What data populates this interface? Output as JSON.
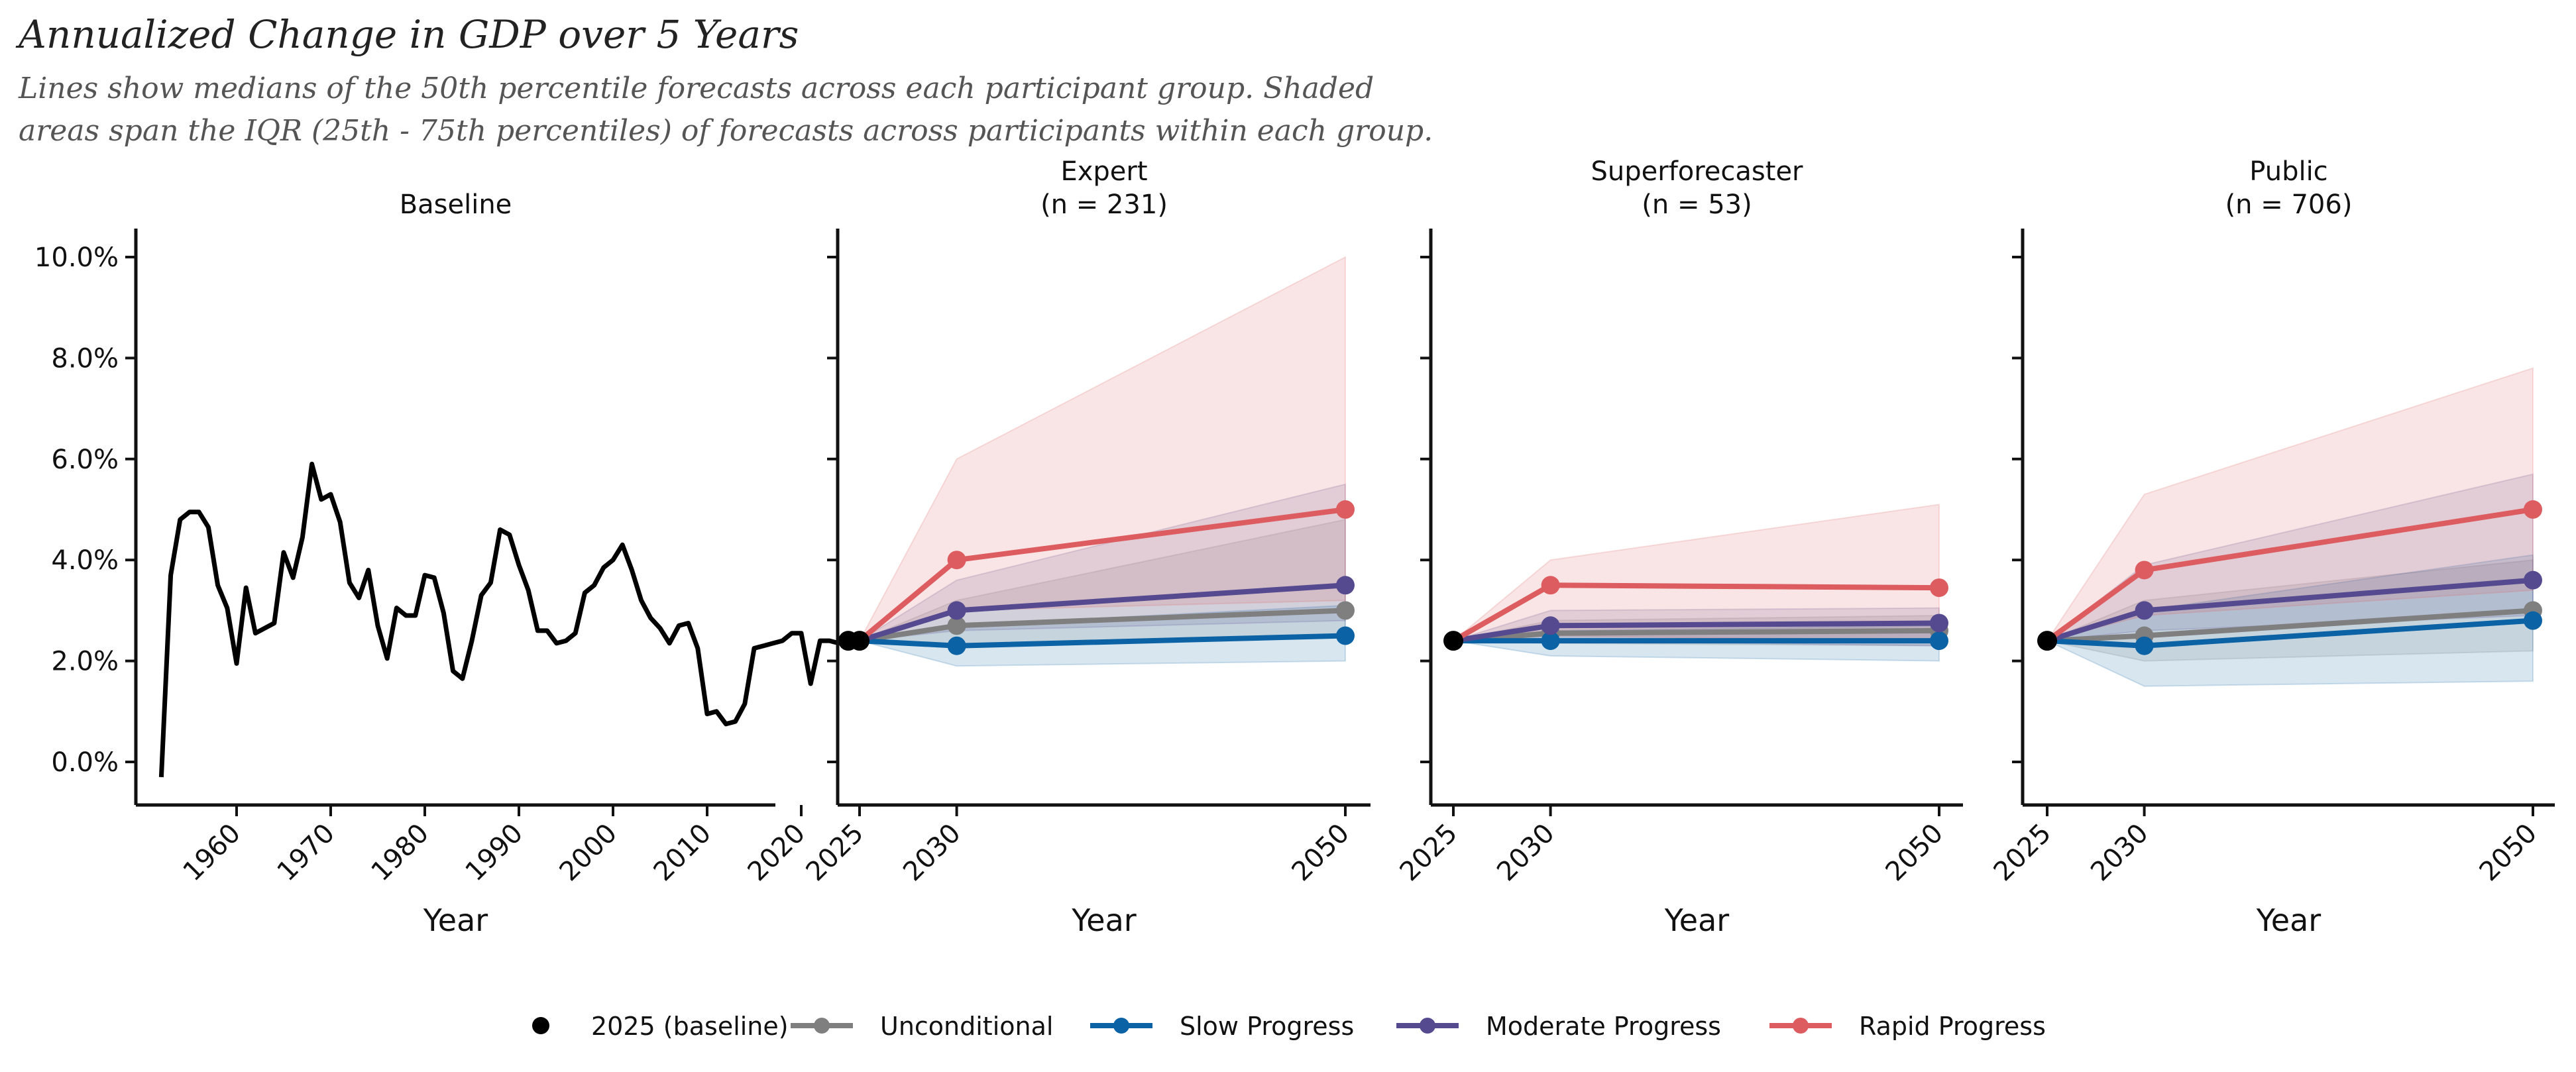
{
  "title": "Annualized Change in GDP over 5 Years",
  "subtitle": "Lines show medians of the 50th percentile forecasts across each participant group. Shaded areas span the IQR (25th - 75th percentiles) of forecasts across participants within each group.",
  "colors": {
    "baseline": "#000000",
    "Unconditional": "#7f7f7f",
    "Slow Progress": "#0b62a4",
    "Moderate Progress": "#554a8f",
    "Rapid Progress": "#dc5c60"
  },
  "chart_data": [
    {
      "type": "line",
      "panel": "Baseline",
      "title": "Baseline",
      "xlabel": "Year",
      "ylabel": "",
      "ylim": [
        -0.8,
        10.5
      ],
      "xlim": [
        1951,
        2027
      ],
      "y_ticks": [
        "0.0%",
        "2.0%",
        "4.0%",
        "6.0%",
        "8.0%",
        "10.0%"
      ],
      "x_ticks": [
        "1960",
        "1970",
        "1980",
        "1990",
        "2000",
        "2010",
        "2020"
      ],
      "series": [
        {
          "x": [
            1952,
            1953,
            1954,
            1955,
            1956,
            1957,
            1958,
            1959,
            1960,
            1961,
            1962,
            1963,
            1964,
            1965,
            1966,
            1967,
            1968,
            1969,
            1970,
            1971,
            1972,
            1973,
            1974,
            1975,
            1976,
            1977,
            1978,
            1979,
            1980,
            1981,
            1982,
            1983,
            1984,
            1985,
            1986,
            1987,
            1988,
            1989,
            1990,
            1991,
            1992,
            1993,
            1994,
            1995,
            1996,
            1997,
            1998,
            1999,
            2000,
            2001,
            2002,
            2003,
            2004,
            2005,
            2006,
            2007,
            2008,
            2009,
            2010,
            2011,
            2012,
            2013,
            2014,
            2015,
            2016,
            2017,
            2018,
            2019,
            2020,
            2021,
            2022,
            2023,
            2024
          ],
          "values": [
            -0.3,
            3.7,
            4.8,
            4.95,
            4.95,
            4.65,
            3.5,
            3.05,
            1.95,
            3.45,
            2.55,
            2.65,
            2.75,
            4.15,
            3.65,
            4.45,
            5.9,
            5.2,
            5.3,
            4.75,
            3.55,
            3.25,
            3.8,
            2.7,
            2.05,
            3.05,
            2.9,
            2.9,
            3.7,
            3.65,
            2.95,
            1.8,
            1.65,
            2.4,
            3.3,
            3.55,
            4.6,
            4.5,
            3.9,
            3.4,
            2.6,
            2.6,
            2.35,
            2.4,
            2.55,
            3.35,
            3.5,
            3.85,
            4.0,
            4.3,
            3.8,
            3.2,
            2.85,
            2.65,
            2.35,
            2.7,
            2.75,
            2.25,
            0.95,
            1.0,
            0.75,
            0.8,
            1.15,
            2.25,
            2.3,
            2.35,
            2.4,
            2.55,
            2.55,
            1.55,
            2.4,
            2.4,
            2.35
          ]
        }
      ],
      "baseline_point": {
        "x": 2025,
        "value": 2.4
      }
    },
    {
      "type": "line",
      "panel": "Expert",
      "title": "Expert",
      "title_n": "(n = 231)",
      "xlabel": "Year",
      "ylim": [
        -0.8,
        10.5
      ],
      "x": [
        2025,
        2030,
        2050
      ],
      "x_ticks": [
        "2025",
        "2030",
        "2050"
      ],
      "series": [
        {
          "name": "Unconditional",
          "values": [
            2.4,
            2.7,
            3.0
          ],
          "iqr_low": [
            2.4,
            2.3,
            2.5
          ],
          "iqr_high": [
            2.4,
            3.2,
            4.8
          ]
        },
        {
          "name": "Slow Progress",
          "values": [
            2.4,
            2.3,
            2.5
          ],
          "iqr_low": [
            2.4,
            1.9,
            2.0
          ],
          "iqr_high": [
            2.4,
            2.7,
            3.1
          ]
        },
        {
          "name": "Moderate Progress",
          "values": [
            2.4,
            3.0,
            3.5
          ],
          "iqr_low": [
            2.4,
            2.6,
            2.8
          ],
          "iqr_high": [
            2.4,
            3.6,
            5.5
          ]
        },
        {
          "name": "Rapid Progress",
          "values": [
            2.4,
            4.0,
            5.0
          ],
          "iqr_low": [
            2.4,
            3.0,
            3.2
          ],
          "iqr_high": [
            2.4,
            6.0,
            10.0
          ]
        }
      ],
      "baseline_point": {
        "x": 2025,
        "value": 2.4
      }
    },
    {
      "type": "line",
      "panel": "Superforecaster",
      "title": "Superforecaster",
      "title_n": "(n = 53)",
      "xlabel": "Year",
      "ylim": [
        -0.8,
        10.5
      ],
      "x": [
        2025,
        2030,
        2050
      ],
      "x_ticks": [
        "2025",
        "2030",
        "2050"
      ],
      "series": [
        {
          "name": "Unconditional",
          "values": [
            2.4,
            2.55,
            2.6
          ],
          "iqr_low": [
            2.4,
            2.35,
            2.3
          ],
          "iqr_high": [
            2.4,
            2.8,
            2.9
          ]
        },
        {
          "name": "Slow Progress",
          "values": [
            2.4,
            2.4,
            2.4
          ],
          "iqr_low": [
            2.4,
            2.1,
            2.0
          ],
          "iqr_high": [
            2.4,
            2.6,
            2.7
          ]
        },
        {
          "name": "Moderate Progress",
          "values": [
            2.4,
            2.7,
            2.75
          ],
          "iqr_low": [
            2.4,
            2.4,
            2.3
          ],
          "iqr_high": [
            2.4,
            3.0,
            3.05
          ]
        },
        {
          "name": "Rapid Progress",
          "values": [
            2.4,
            3.5,
            3.45
          ],
          "iqr_low": [
            2.4,
            2.5,
            2.4
          ],
          "iqr_high": [
            2.4,
            4.0,
            5.1
          ]
        }
      ],
      "baseline_point": {
        "x": 2025,
        "value": 2.4
      }
    },
    {
      "type": "line",
      "panel": "Public",
      "title": "Public",
      "title_n": "(n = 706)",
      "xlabel": "Year",
      "ylim": [
        -0.8,
        10.5
      ],
      "x": [
        2025,
        2030,
        2050
      ],
      "x_ticks": [
        "2025",
        "2030",
        "2050"
      ],
      "series": [
        {
          "name": "Unconditional",
          "values": [
            2.4,
            2.5,
            3.0
          ],
          "iqr_low": [
            2.4,
            2.0,
            2.2
          ],
          "iqr_high": [
            2.4,
            3.2,
            4.0
          ]
        },
        {
          "name": "Slow Progress",
          "values": [
            2.4,
            2.3,
            2.8
          ],
          "iqr_low": [
            2.4,
            1.5,
            1.6
          ],
          "iqr_high": [
            2.4,
            3.0,
            4.1
          ]
        },
        {
          "name": "Moderate Progress",
          "values": [
            2.4,
            3.0,
            3.6
          ],
          "iqr_low": [
            2.4,
            2.6,
            2.9
          ],
          "iqr_high": [
            2.4,
            3.9,
            5.7
          ]
        },
        {
          "name": "Rapid Progress",
          "values": [
            2.4,
            3.8,
            5.0
          ],
          "iqr_low": [
            2.4,
            2.9,
            3.4
          ],
          "iqr_high": [
            2.4,
            5.3,
            7.8
          ]
        }
      ],
      "baseline_point": {
        "x": 2025,
        "value": 2.4
      }
    }
  ],
  "legend": {
    "placement": "bottom-center",
    "items": [
      {
        "label": "2025 (baseline)",
        "key": "baseline"
      },
      {
        "label": "Unconditional",
        "key": "Unconditional"
      },
      {
        "label": "Slow Progress",
        "key": "Slow Progress"
      },
      {
        "label": "Moderate Progress",
        "key": "Moderate Progress"
      },
      {
        "label": "Rapid Progress",
        "key": "Rapid Progress"
      }
    ]
  }
}
